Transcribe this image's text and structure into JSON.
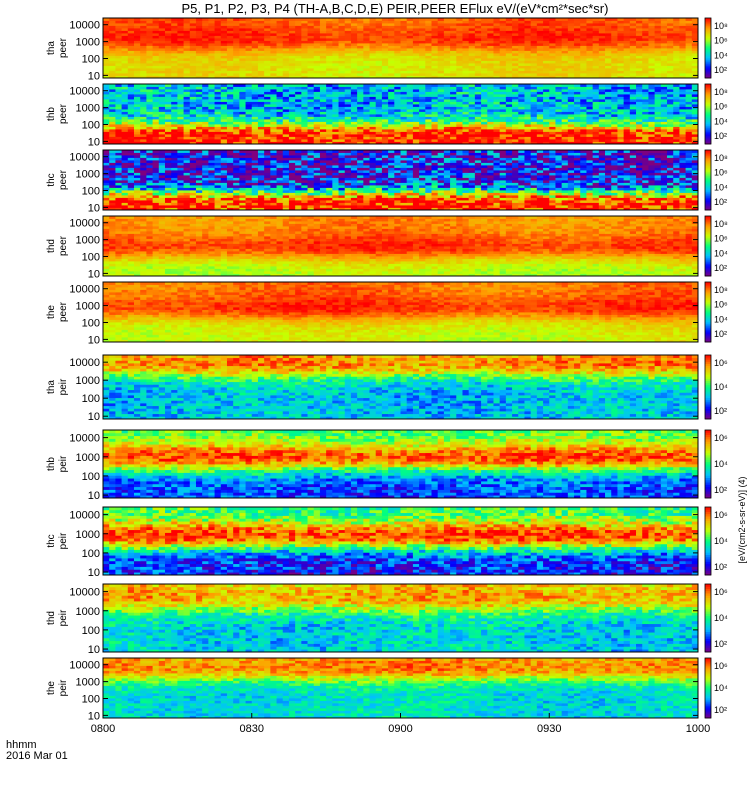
{
  "chart_data": {
    "type": "heatmap",
    "title": "P5, P1, P2, P3, P4 (TH-A,B,C,D,E) PEIR,PEER EFlux eV/(eV*cm²*sec*sr)",
    "x_axis": {
      "ticks": [
        "0800",
        "0830",
        "0900",
        "0930",
        "1000"
      ],
      "range_hours": [
        8.0,
        10.0
      ],
      "label_line1": "hhmm",
      "label_line2": "2016 Mar 01"
    },
    "colorbar": {
      "scale": "log",
      "colors": [
        "#7f007f",
        "#0000ff",
        "#00c0ff",
        "#00ff7f",
        "#c8ff00",
        "#ffa000",
        "#ff0000"
      ]
    },
    "colorbar_label": "[eV/(cm2-s-sr-eV)] (4)",
    "panels": [
      {
        "probe": "tha",
        "species": "peer",
        "yticks": [
          "10000",
          "1000",
          "100",
          "10"
        ],
        "ylim": [
          7,
          25000
        ],
        "cb_ticks": [
          "10⁸",
          "10⁶",
          "10⁴",
          "10²"
        ],
        "peak_energy_log": 3.2,
        "peak_level": 0.95,
        "low_energy_level": 0.72,
        "high_energy_level": 0.9,
        "noise": 0.05
      },
      {
        "probe": "thb",
        "species": "peer",
        "yticks": [
          "10000",
          "1000",
          "100",
          "10"
        ],
        "ylim": [
          7,
          25000
        ],
        "cb_ticks": [
          "10⁸",
          "10⁶",
          "10⁴",
          "10²"
        ],
        "peak_energy_log": 1.4,
        "peak_level": 0.98,
        "low_energy_level": 0.98,
        "high_energy_level": 0.35,
        "noise": 0.18
      },
      {
        "probe": "thc",
        "species": "peer",
        "yticks": [
          "10000",
          "1000",
          "100",
          "10"
        ],
        "ylim": [
          7,
          25000
        ],
        "cb_ticks": [
          "10⁸",
          "10⁶",
          "10⁴",
          "10²"
        ],
        "peak_energy_log": 1.3,
        "peak_level": 0.99,
        "low_energy_level": 0.99,
        "high_energy_level": 0.15,
        "noise": 0.25
      },
      {
        "probe": "thd",
        "species": "peer",
        "yticks": [
          "10000",
          "1000",
          "100",
          "10"
        ],
        "ylim": [
          7,
          25000
        ],
        "cb_ticks": [
          "10⁸",
          "10⁶",
          "10⁴",
          "10²"
        ],
        "peak_energy_log": 2.6,
        "peak_level": 0.95,
        "low_energy_level": 0.65,
        "high_energy_level": 0.85,
        "noise": 0.05
      },
      {
        "probe": "the",
        "species": "peer",
        "yticks": [
          "10000",
          "1000",
          "100",
          "10"
        ],
        "ylim": [
          7,
          25000
        ],
        "cb_ticks": [
          "10⁸",
          "10⁶",
          "10⁴",
          "10²"
        ],
        "peak_energy_log": 2.9,
        "peak_level": 0.95,
        "low_energy_level": 0.68,
        "high_energy_level": 0.88,
        "noise": 0.05
      },
      {
        "probe": "tha",
        "species": "peir",
        "yticks": [
          "10000",
          "1000",
          "100",
          "10"
        ],
        "ylim": [
          7,
          25000
        ],
        "cb_ticks": [
          "10⁶",
          "10⁴",
          "10²"
        ],
        "peak_energy_log": 3.9,
        "peak_level": 0.85,
        "low_energy_level": 0.35,
        "high_energy_level": 0.8,
        "noise": 0.12
      },
      {
        "probe": "thb",
        "species": "peir",
        "yticks": [
          "10000",
          "1000",
          "100",
          "10"
        ],
        "ylim": [
          7,
          25000
        ],
        "cb_ticks": [
          "10⁶",
          "10⁴",
          "10²"
        ],
        "peak_energy_log": 3.0,
        "peak_level": 0.92,
        "low_energy_level": 0.22,
        "high_energy_level": 0.55,
        "noise": 0.12
      },
      {
        "probe": "thc",
        "species": "peir",
        "yticks": [
          "10000",
          "1000",
          "100",
          "10"
        ],
        "ylim": [
          7,
          25000
        ],
        "cb_ticks": [
          "10⁶",
          "10⁴",
          "10²"
        ],
        "peak_energy_log": 2.95,
        "peak_level": 0.95,
        "low_energy_level": 0.18,
        "high_energy_level": 0.5,
        "noise": 0.15
      },
      {
        "probe": "thd",
        "species": "peir",
        "yticks": [
          "10000",
          "1000",
          "100",
          "10"
        ],
        "ylim": [
          7,
          25000
        ],
        "cb_ticks": [
          "10⁶",
          "10⁴",
          "10²"
        ],
        "peak_energy_log": 3.7,
        "peak_level": 0.82,
        "low_energy_level": 0.38,
        "high_energy_level": 0.72,
        "noise": 0.12
      },
      {
        "probe": "the",
        "species": "peir",
        "yticks": [
          "10000",
          "1000",
          "100",
          "10"
        ],
        "ylim": [
          7,
          25000
        ],
        "cb_ticks": [
          "10⁶",
          "10⁴",
          "10²"
        ],
        "peak_energy_log": 3.8,
        "peak_level": 0.86,
        "low_energy_level": 0.4,
        "high_energy_level": 0.78,
        "noise": 0.1
      }
    ]
  }
}
